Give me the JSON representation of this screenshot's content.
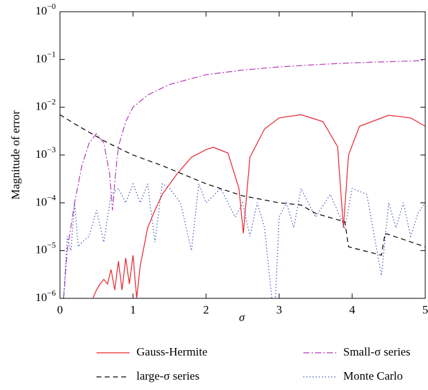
{
  "chart_data": {
    "type": "line",
    "xlabel": "σ",
    "ylabel": "Magnitude of error",
    "xlim": [
      0,
      5
    ],
    "xticks": [
      0,
      1,
      2,
      3,
      4,
      5
    ],
    "ylim": [
      1e-06,
      1
    ],
    "log_y": true,
    "yticks": [
      {
        "value": 1e-06,
        "label": "10−6"
      },
      {
        "value": 1e-05,
        "label": "10−5"
      },
      {
        "value": 0.0001,
        "label": "10−4"
      },
      {
        "value": 0.001,
        "label": "10−3"
      },
      {
        "value": 0.01,
        "label": "10−2"
      },
      {
        "value": 0.1,
        "label": "10−1"
      },
      {
        "value": 1,
        "label": "10−0"
      }
    ],
    "legend_position": "bottom",
    "series": [
      {
        "name": "Gauss-Hermite",
        "color": "#e8212b",
        "dash": "solid",
        "x": [
          0.45,
          0.5,
          0.55,
          0.6,
          0.65,
          0.7,
          0.75,
          0.8,
          0.85,
          0.9,
          0.95,
          1.0,
          1.05,
          1.1,
          1.15,
          1.2,
          1.3,
          1.4,
          1.6,
          1.8,
          2.0,
          2.1,
          2.3,
          2.45,
          2.51,
          2.6,
          2.8,
          3.0,
          3.3,
          3.6,
          3.8,
          3.88,
          3.95,
          4.1,
          4.5,
          4.8,
          5.0
        ],
        "values": [
          1e-06,
          1.5e-06,
          2e-06,
          2.5e-06,
          2e-06,
          4e-06,
          1.5e-06,
          6e-06,
          1.5e-06,
          7e-06,
          2e-06,
          8e-06,
          1e-06,
          5e-06,
          1.2e-05,
          3e-05,
          7e-05,
          0.00015,
          0.0004,
          0.0009,
          0.0013,
          0.00145,
          0.0011,
          0.0002,
          2.3e-05,
          0.0009,
          0.0035,
          0.006,
          0.007,
          0.005,
          0.0015,
          3e-05,
          0.001,
          0.004,
          0.0068,
          0.006,
          0.004
        ]
      },
      {
        "name": "large-σ series",
        "color": "#000000",
        "dash": "dashed",
        "x": [
          0,
          0.2,
          0.4,
          0.6,
          0.8,
          1.0,
          1.4,
          2.0,
          2.5,
          3.0,
          3.3,
          3.5,
          3.9,
          3.95,
          4.4,
          4.45,
          5.0
        ],
        "values": [
          0.007,
          0.0045,
          0.003,
          0.002,
          0.0014,
          0.001,
          0.0006,
          0.00025,
          0.00014,
          0.0001,
          9e-05,
          6e-05,
          4e-05,
          1.2e-05,
          8e-06,
          2.3e-05,
          1.2e-05
        ]
      },
      {
        "name": "Small-σ series",
        "color": "#b23ab5",
        "dash": "dashdot",
        "x": [
          0.05,
          0.1,
          0.2,
          0.3,
          0.4,
          0.5,
          0.6,
          0.68,
          0.72,
          0.76,
          0.8,
          0.9,
          1.0,
          1.2,
          1.5,
          2.0,
          2.5,
          3.0,
          3.5,
          4.0,
          4.5,
          5.0
        ],
        "values": [
          1e-06,
          1e-05,
          0.0001,
          0.0006,
          0.0018,
          0.0028,
          0.0018,
          0.0004,
          7e-05,
          0.0004,
          0.0015,
          0.005,
          0.01,
          0.018,
          0.03,
          0.048,
          0.06,
          0.07,
          0.078,
          0.085,
          0.09,
          0.095
        ]
      },
      {
        "name": "Monte Carlo",
        "color": "#3a4fb5",
        "dash": "dotted",
        "x": [
          0.05,
          0.1,
          0.15,
          0.2,
          0.25,
          0.3,
          0.4,
          0.5,
          0.6,
          0.7,
          0.8,
          0.9,
          1.0,
          1.1,
          1.2,
          1.3,
          1.4,
          1.5,
          1.65,
          1.8,
          1.9,
          2.0,
          2.2,
          2.4,
          2.5,
          2.6,
          2.7,
          2.8,
          2.9,
          2.95,
          3.0,
          3.1,
          3.2,
          3.3,
          3.5,
          3.7,
          3.9,
          4.0,
          4.2,
          4.4,
          4.5,
          4.6,
          4.7,
          4.8,
          4.9,
          5.0
        ],
        "values": [
          1e-06,
          2e-05,
          1e-05,
          0.0001,
          1.2e-05,
          1.5e-05,
          2e-05,
          7e-05,
          1.5e-05,
          0.00015,
          0.0002,
          0.0001,
          0.00025,
          0.0001,
          0.00025,
          1.5e-05,
          0.00025,
          0.0002,
          0.0001,
          1e-05,
          0.00025,
          0.0001,
          0.0002,
          5e-05,
          0.0001,
          2e-05,
          0.0001,
          3e-05,
          1e-06,
          1e-06,
          5e-05,
          0.0001,
          3e-05,
          0.0002,
          5e-05,
          0.00015,
          3e-05,
          0.0002,
          0.00015,
          3e-06,
          0.0001,
          3e-05,
          0.0001,
          2e-05,
          6e-05,
          0.0001
        ]
      }
    ]
  }
}
